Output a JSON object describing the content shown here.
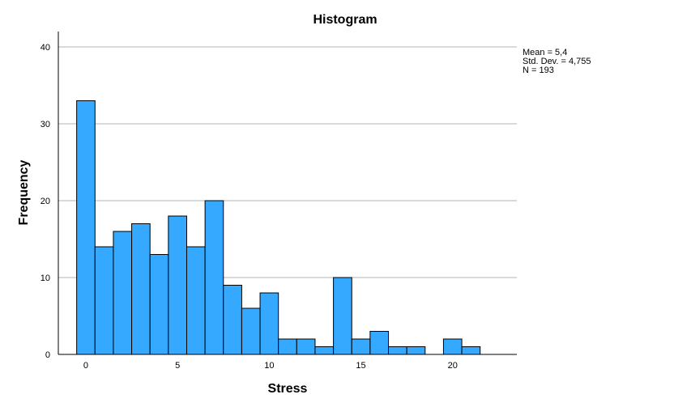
{
  "chart_data": {
    "type": "bar",
    "title": "Histogram",
    "xlabel": "Stress",
    "ylabel": "Frequency",
    "bins": [
      {
        "x_start": -0.5,
        "x_end": 0.5,
        "count": 33
      },
      {
        "x_start": 0.5,
        "x_end": 1.5,
        "count": 14
      },
      {
        "x_start": 1.5,
        "x_end": 2.5,
        "count": 16
      },
      {
        "x_start": 2.5,
        "x_end": 3.5,
        "count": 17
      },
      {
        "x_start": 3.5,
        "x_end": 4.5,
        "count": 13
      },
      {
        "x_start": 4.5,
        "x_end": 5.5,
        "count": 18
      },
      {
        "x_start": 5.5,
        "x_end": 6.5,
        "count": 14
      },
      {
        "x_start": 6.5,
        "x_end": 7.5,
        "count": 20
      },
      {
        "x_start": 7.5,
        "x_end": 8.5,
        "count": 9
      },
      {
        "x_start": 8.5,
        "x_end": 9.5,
        "count": 6
      },
      {
        "x_start": 9.5,
        "x_end": 10.5,
        "count": 8
      },
      {
        "x_start": 10.5,
        "x_end": 11.5,
        "count": 2
      },
      {
        "x_start": 11.5,
        "x_end": 12.5,
        "count": 2
      },
      {
        "x_start": 12.5,
        "x_end": 13.5,
        "count": 1
      },
      {
        "x_start": 13.5,
        "x_end": 14.5,
        "count": 10
      },
      {
        "x_start": 14.5,
        "x_end": 15.5,
        "count": 2
      },
      {
        "x_start": 15.5,
        "x_end": 16.5,
        "count": 3
      },
      {
        "x_start": 16.5,
        "x_end": 17.5,
        "count": 1
      },
      {
        "x_start": 17.5,
        "x_end": 18.5,
        "count": 1
      },
      {
        "x_start": 18.5,
        "x_end": 19.5,
        "count": 0
      },
      {
        "x_start": 19.5,
        "x_end": 20.5,
        "count": 2
      },
      {
        "x_start": 20.5,
        "x_end": 21.5,
        "count": 1
      }
    ],
    "xlim": [
      -1.5,
      23.5
    ],
    "ylim": [
      0,
      42
    ],
    "xticks": [
      0,
      5,
      10,
      15,
      20
    ],
    "yticks": [
      0,
      10,
      20,
      30,
      40
    ],
    "grid": "horizontal",
    "bar_color": "#34A9FF",
    "bar_edge_color": "#000000",
    "stats": [
      "Mean = 5,4",
      "Std. Dev. = 4,755",
      "N = 193"
    ]
  }
}
